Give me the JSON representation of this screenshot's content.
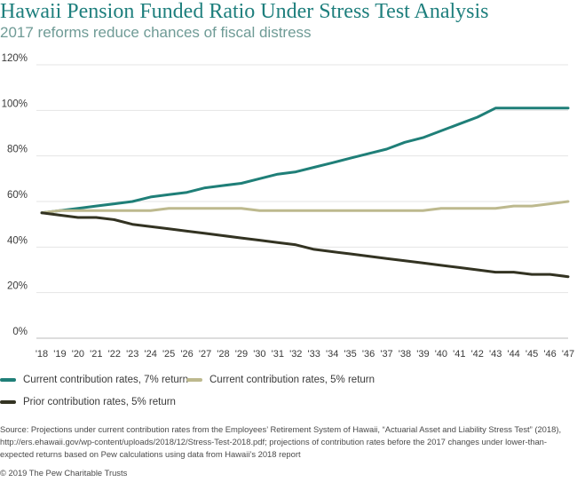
{
  "title": "Hawaii Pension Funded Ratio Under Stress Test Analysis",
  "subtitle": "2017 reforms reduce chances of fiscal distress",
  "source": "Source: Projections under current contribution rates from the Employees’ Retirement System of Hawaii, “Actuarial Asset and Liability Stress Test” (2018), http://ers.ehawaii.gov/wp-content/uploads/2018/12/Stress-Test-2018.pdf; projections of contribution rates before the 2017 changes under lower-than-expected returns based on Pew calculations using data from Hawaii’s 2018 report",
  "copyright": "© 2019 The Pew Charitable Trusts",
  "colors": {
    "teal": "#1f7f78",
    "tan": "#bdb98e",
    "dark": "#333322",
    "grid": "#e4e4e4",
    "text": "#3a3a3a"
  },
  "chart_data": {
    "type": "line",
    "title": "Hawaii Pension Funded Ratio Under Stress Test Analysis",
    "subtitle": "2017 reforms reduce chances of fiscal distress",
    "xlabel": "",
    "ylabel": "",
    "ylim": [
      0,
      120
    ],
    "yticks": [
      "0%",
      "20%",
      "40%",
      "60%",
      "80%",
      "100%",
      "120%"
    ],
    "grid": true,
    "legend": "bottom",
    "x": [
      "'18",
      "'19",
      "'20",
      "'21",
      "'22",
      "'23",
      "'24",
      "'25",
      "'26",
      "'27",
      "'28",
      "'29",
      "'30",
      "'31",
      "'32",
      "'33",
      "'34",
      "'35",
      "'36",
      "'37",
      "'38",
      "'39",
      "'40",
      "'41",
      "'42",
      "'43",
      "'44",
      "'45",
      "'46",
      "'47"
    ],
    "series": [
      {
        "name": "Current contribution rates, 7% return",
        "color": "#1f7f78",
        "values": [
          55,
          56,
          57,
          58,
          59,
          60,
          62,
          63,
          64,
          66,
          67,
          68,
          70,
          72,
          73,
          75,
          77,
          79,
          81,
          83,
          86,
          88,
          91,
          94,
          97,
          101,
          101,
          101,
          101,
          101
        ]
      },
      {
        "name": "Current contribution rates, 5% return",
        "color": "#bdb98e",
        "values": [
          55,
          56,
          56,
          56,
          56,
          56,
          56,
          57,
          57,
          57,
          57,
          57,
          56,
          56,
          56,
          56,
          56,
          56,
          56,
          56,
          56,
          56,
          57,
          57,
          57,
          57,
          58,
          58,
          59,
          60
        ]
      },
      {
        "name": "Prior contribution rates, 5% return",
        "color": "#333322",
        "values": [
          55,
          54,
          53,
          53,
          52,
          50,
          49,
          48,
          47,
          46,
          45,
          44,
          43,
          42,
          41,
          39,
          38,
          37,
          36,
          35,
          34,
          33,
          32,
          31,
          30,
          29,
          29,
          28,
          28,
          27
        ]
      }
    ]
  }
}
